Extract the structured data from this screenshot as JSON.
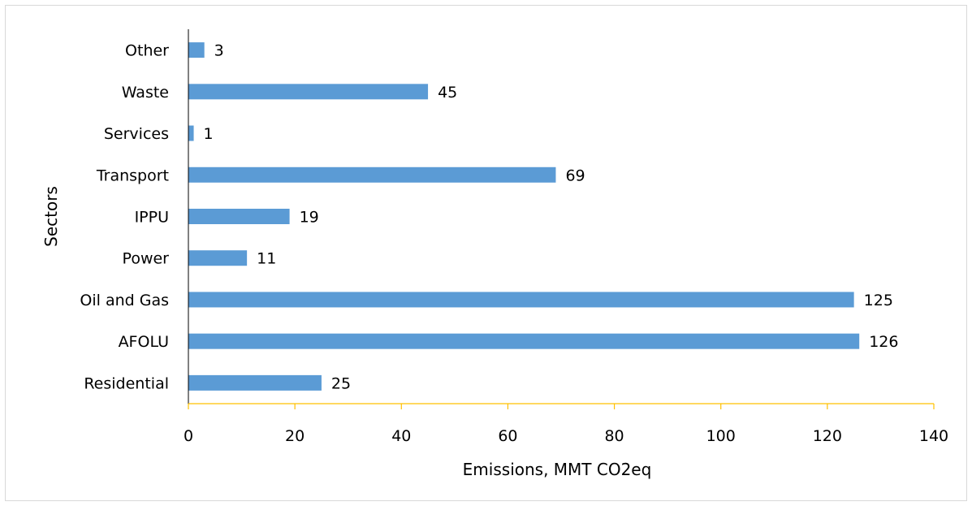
{
  "chart_data": {
    "type": "bar",
    "orientation": "horizontal",
    "categories": [
      "Residential",
      "AFOLU",
      "Oil and Gas",
      "Power",
      "IPPU",
      "Transport",
      "Services",
      "Waste",
      "Other"
    ],
    "values": [
      25,
      126,
      125,
      11,
      19,
      69,
      1,
      45,
      3
    ],
    "data_labels": [
      "25",
      "126",
      "125",
      "11",
      "19",
      "69",
      "1",
      "45",
      "3"
    ],
    "xlabel": "Emissions, MMT CO2eq",
    "ylabel": "Sectors",
    "xlim": [
      0,
      140
    ],
    "xticks": [
      "0",
      "20",
      "40",
      "60",
      "80",
      "100",
      "120",
      "140"
    ],
    "grid": false,
    "legend": "none",
    "colors": {
      "bar": "#5b9bd5",
      "x_axis": "#ffc000",
      "y_axis": "#000000",
      "border": "#d9d9d9"
    }
  }
}
